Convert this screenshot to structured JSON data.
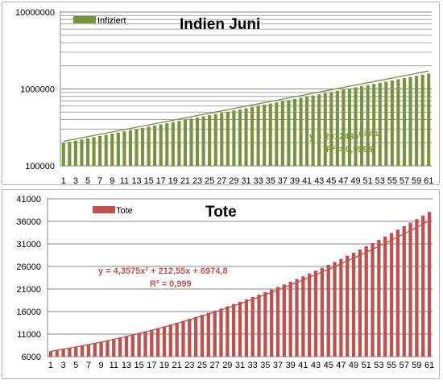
{
  "chart_data": [
    {
      "type": "bar",
      "title": "Indien Juni",
      "scale": "log",
      "ylim": [
        100000,
        10000000
      ],
      "y_ticks": [
        "100000",
        "1000000",
        "10000000"
      ],
      "grid": "horizontal minor",
      "legend_position": "top-left",
      "x": [
        1,
        2,
        3,
        4,
        5,
        6,
        7,
        8,
        9,
        10,
        11,
        12,
        13,
        14,
        15,
        16,
        17,
        18,
        19,
        20,
        21,
        22,
        23,
        24,
        25,
        26,
        27,
        28,
        29,
        30,
        31,
        32,
        33,
        34,
        35,
        36,
        37,
        38,
        39,
        40,
        41,
        42,
        43,
        44,
        45,
        46,
        47,
        48,
        49,
        50,
        51,
        52,
        53,
        54,
        55,
        56,
        57,
        58,
        59,
        60,
        61
      ],
      "x_tick_labels": [
        "1",
        "3",
        "5",
        "7",
        "9",
        "11",
        "13",
        "15",
        "17",
        "19",
        "21",
        "23",
        "25",
        "27",
        "29",
        "31",
        "33",
        "35",
        "37",
        "39",
        "41",
        "43",
        "45",
        "47",
        "49",
        "51",
        "53",
        "55",
        "57",
        "59",
        "61"
      ],
      "series": [
        {
          "name": "Infiziert",
          "color": "#77933c",
          "values": [
            198000,
            205000,
            213000,
            220000,
            228000,
            236000,
            244000,
            253000,
            262000,
            271000,
            281000,
            291000,
            301000,
            312000,
            323000,
            334000,
            346000,
            358000,
            371000,
            384000,
            397000,
            411000,
            426000,
            441000,
            456000,
            473000,
            490000,
            507000,
            525000,
            543000,
            563000,
            583000,
            603000,
            624000,
            646000,
            669000,
            693000,
            717000,
            742000,
            768000,
            795000,
            823000,
            852000,
            882000,
            913000,
            945000,
            978000,
            1012000,
            1048000,
            1085000,
            1122000,
            1162000,
            1203000,
            1245000,
            1289000,
            1335000,
            1382000,
            1431000,
            1481000,
            1533000,
            1585000
          ]
        }
      ],
      "trendline": {
        "color": "#77933c",
        "equation_base": "y = 201248e",
        "equation_exp": "0,0351x",
        "r2": "R² = 0,9995",
        "a": 201248,
        "b": 0.0351
      }
    },
    {
      "type": "bar",
      "title": "Tote",
      "ylim": [
        6000,
        41000
      ],
      "y_ticks": [
        "6000",
        "11000",
        "16000",
        "21000",
        "26000",
        "31000",
        "36000",
        "41000"
      ],
      "grid": "horizontal",
      "legend_position": "top-left",
      "x": [
        1,
        2,
        3,
        4,
        5,
        6,
        7,
        8,
        9,
        10,
        11,
        12,
        13,
        14,
        15,
        16,
        17,
        18,
        19,
        20,
        21,
        22,
        23,
        24,
        25,
        26,
        27,
        28,
        29,
        30,
        31,
        32,
        33,
        34,
        35,
        36,
        37,
        38,
        39,
        40,
        41,
        42,
        43,
        44,
        45,
        46,
        47,
        48,
        49,
        50,
        51,
        52,
        53,
        54,
        55,
        56,
        57,
        58,
        59,
        60,
        61
      ],
      "x_tick_labels": [
        "1",
        "3",
        "5",
        "7",
        "9",
        "11",
        "13",
        "15",
        "17",
        "19",
        "21",
        "23",
        "25",
        "27",
        "29",
        "31",
        "33",
        "35",
        "37",
        "39",
        "41",
        "43",
        "45",
        "47",
        "49",
        "51",
        "53",
        "55",
        "57",
        "59",
        "61"
      ],
      "series": [
        {
          "name": "Tote",
          "color": "#c0504d",
          "values": [
            7190,
            7420,
            7660,
            7900,
            8150,
            8420,
            8690,
            8970,
            9260,
            9560,
            9870,
            10190,
            10520,
            10860,
            11210,
            11570,
            11940,
            12320,
            12710,
            13110,
            13520,
            13940,
            14370,
            14810,
            15260,
            15720,
            16190,
            16670,
            17160,
            17660,
            18170,
            18690,
            19220,
            19760,
            20310,
            20870,
            21440,
            22020,
            22610,
            23210,
            23820,
            24440,
            25070,
            25710,
            26360,
            27020,
            27690,
            28370,
            29060,
            29760,
            30470,
            31190,
            31920,
            32660,
            33410,
            34170,
            34940,
            35720,
            36510,
            37310,
            38110
          ]
        }
      ],
      "trendline": {
        "color": "#c0504d",
        "equation": "y = 4,3575x² + 212,55x + 6974,8",
        "r2": "R² = 0,999",
        "a": 4.3575,
        "b": 212.55,
        "c": 6974.8
      }
    }
  ]
}
